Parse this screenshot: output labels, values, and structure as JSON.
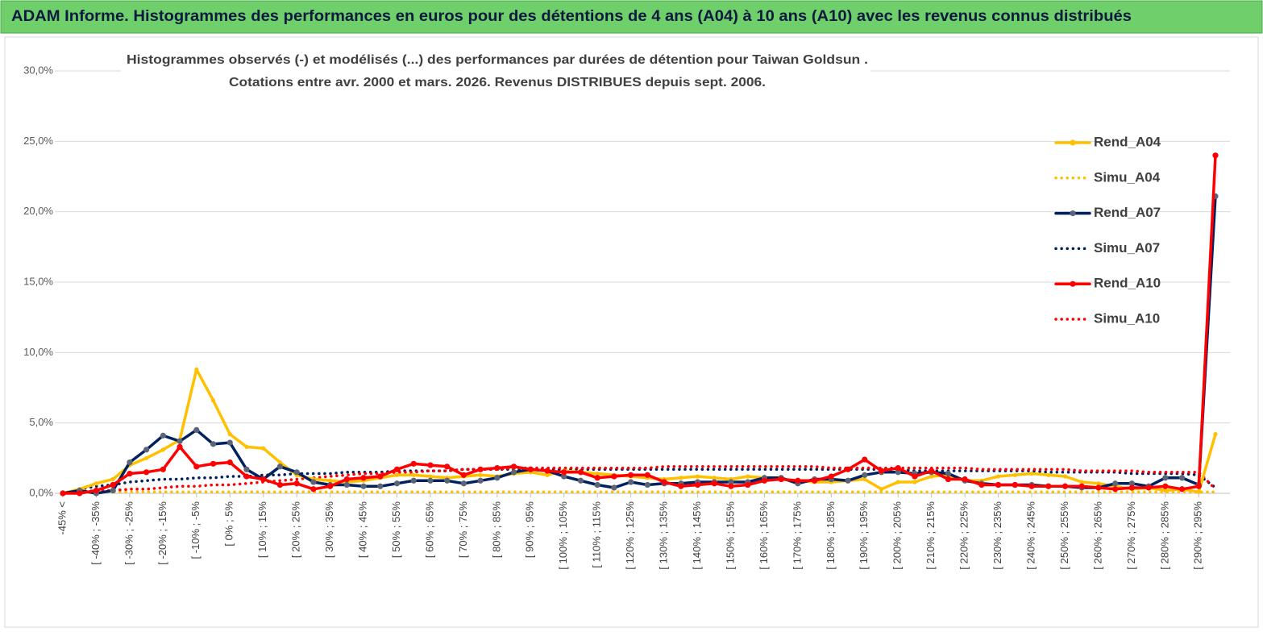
{
  "chart_data": {
    "type": "line",
    "title": "ADAM Informe. Histogrammes des performances en euros pour des détentions de 4 ans (A04) à 10 ans (A10) avec les revenus connus distribués",
    "subtitle": [
      "Histogrammes observés (-) et modélisés (...) des performances par durées de détention pour Taiwan Goldsun .",
      "Cotations entre avr. 2000 et mars. 2026. Revenus DISTRIBUES depuis sept. 2006."
    ],
    "categories": [
      "-45% <",
      null,
      "[ -40% ; -35%",
      null,
      "[ -30% ; -25%",
      null,
      "[ -20% ; -15%",
      null,
      "[ -10% ; -5%",
      null,
      "[ 0% ; 5%",
      null,
      "[ 10% ; 15%",
      null,
      "[ 20% ; 25%",
      null,
      "[ 30% ; 35%",
      null,
      "[ 40% ; 45%",
      null,
      "[ 50% ; 55%",
      null,
      "[ 60% ; 65%",
      null,
      "[ 70% ; 75%",
      null,
      "[ 80% ; 85%",
      null,
      "[ 90% ; 95%",
      null,
      "[ 100% ; 105%",
      null,
      "[ 110% ; 115%",
      null,
      "[ 120% ; 125%",
      null,
      "[ 130% ; 135%",
      null,
      "[ 140% ; 145%",
      null,
      "[ 150% ; 155%",
      null,
      "[ 160% ; 165%",
      null,
      "[ 170% ; 175%",
      null,
      "[ 180% ; 185%",
      null,
      "[ 190% ; 195%",
      null,
      "[ 200% ; 205%",
      null,
      "[ 210% ; 215%",
      null,
      "[ 220% ; 225%",
      null,
      "[ 230% ; 235%",
      null,
      "[ 240% ; 245%",
      null,
      "[ 250% ; 255%",
      null,
      "[ 260% ; 265%",
      null,
      "[ 270% ; 275%",
      null,
      "[ 280% ; 285%",
      null,
      "[ 290% ; 295%",
      null
    ],
    "series": [
      {
        "name": "Rend_A04",
        "color": "#FFC000",
        "style": "solid",
        "markers": true,
        "values": [
          0,
          0.3,
          0.7,
          1.0,
          2.0,
          2.5,
          3.1,
          3.8,
          8.8,
          6.6,
          4.2,
          3.3,
          3.2,
          2.2,
          1.3,
          1.0,
          0.9,
          0.8,
          0.9,
          1.1,
          1.3,
          1.3,
          1.2,
          1.1,
          1.2,
          1.3,
          1.2,
          1.4,
          1.5,
          1.3,
          1.6,
          1.5,
          1.4,
          1.3,
          1.2,
          1.1,
          1.0,
          1.1,
          1.2,
          1.1,
          1.0,
          1.2,
          1.1,
          1.0,
          0.9,
          0.8,
          0.8,
          0.9,
          1.0,
          0.3,
          0.8,
          0.8,
          1.2,
          1.3,
          0.9,
          0.9,
          1.2,
          1.3,
          1.4,
          1.3,
          1.2,
          0.8,
          0.7,
          0.5,
          0.3,
          0.4,
          0.2,
          0.3,
          0.1,
          4.2
        ]
      },
      {
        "name": "Simu_A04",
        "color": "#FFC000",
        "style": "dotted",
        "markers": false,
        "values": [
          0,
          0.1,
          0.1,
          0.1,
          0.1,
          0.1,
          0.1,
          0.1,
          0.1,
          0.1,
          0.1,
          0.1,
          0.1,
          0.1,
          0.1,
          0.1,
          0.1,
          0.1,
          0.1,
          0.1,
          0.1,
          0.1,
          0.1,
          0.1,
          0.1,
          0.1,
          0.1,
          0.1,
          0.1,
          0.1,
          0.1,
          0.1,
          0.1,
          0.1,
          0.1,
          0.1,
          0.1,
          0.1,
          0.1,
          0.1,
          0.1,
          0.1,
          0.1,
          0.1,
          0.1,
          0.1,
          0.1,
          0.1,
          0.1,
          0.1,
          0.1,
          0.1,
          0.1,
          0.1,
          0.1,
          0.1,
          0.1,
          0.1,
          0.1,
          0.1,
          0.1,
          0.1,
          0.1,
          0.1,
          0.1,
          0.1,
          0.1,
          0.1,
          0.1,
          0.1
        ]
      },
      {
        "name": "Rend_A07",
        "color": "#002060",
        "style": "solid",
        "markers": true,
        "values": [
          0,
          0.2,
          0,
          0.2,
          2.2,
          3.1,
          4.1,
          3.7,
          4.5,
          3.5,
          3.6,
          1.7,
          1.0,
          1.9,
          1.5,
          0.8,
          0.6,
          0.6,
          0.5,
          0.5,
          0.7,
          0.9,
          0.9,
          0.9,
          0.7,
          0.9,
          1.1,
          1.5,
          1.7,
          1.6,
          1.2,
          0.9,
          0.6,
          0.4,
          0.8,
          0.6,
          0.7,
          0.7,
          0.8,
          0.8,
          0.8,
          0.8,
          1.1,
          1.1,
          0.7,
          1.0,
          1.0,
          0.9,
          1.3,
          1.5,
          1.5,
          1.4,
          1.5,
          1.4,
          0.9,
          0.7,
          0.6,
          0.6,
          0.6,
          0.5,
          0.5,
          0.4,
          0.4,
          0.7,
          0.7,
          0.5,
          1.1,
          1.1,
          0.6,
          21.1
        ]
      },
      {
        "name": "Simu_A07",
        "color": "#002060",
        "style": "dotted",
        "markers": false,
        "values": [
          0,
          0.3,
          0.5,
          0.6,
          0.8,
          0.9,
          1.0,
          1.0,
          1.1,
          1.1,
          1.2,
          1.2,
          1.3,
          1.3,
          1.4,
          1.4,
          1.4,
          1.5,
          1.5,
          1.5,
          1.6,
          1.6,
          1.6,
          1.6,
          1.7,
          1.7,
          1.7,
          1.7,
          1.7,
          1.7,
          1.7,
          1.7,
          1.7,
          1.7,
          1.7,
          1.7,
          1.7,
          1.7,
          1.7,
          1.7,
          1.7,
          1.7,
          1.7,
          1.7,
          1.7,
          1.7,
          1.7,
          1.7,
          1.7,
          1.7,
          1.7,
          1.6,
          1.6,
          1.6,
          1.6,
          1.6,
          1.6,
          1.6,
          1.6,
          1.5,
          1.5,
          1.5,
          1.5,
          1.5,
          1.4,
          1.4,
          1.4,
          1.4,
          1.3,
          0.4
        ]
      },
      {
        "name": "Rend_A10",
        "color": "#FF0000",
        "style": "solid",
        "markers": true,
        "values": [
          0,
          0,
          0.2,
          0.6,
          1.4,
          1.5,
          1.7,
          3.3,
          1.9,
          2.1,
          2.2,
          1.2,
          1.0,
          0.6,
          0.7,
          0.3,
          0.5,
          1.0,
          1.1,
          1.2,
          1.7,
          2.1,
          2.0,
          1.9,
          1.3,
          1.7,
          1.8,
          1.9,
          1.7,
          1.6,
          1.5,
          1.5,
          1.1,
          1.2,
          1.3,
          1.3,
          0.8,
          0.5,
          0.6,
          0.7,
          0.5,
          0.6,
          0.9,
          1.0,
          0.9,
          0.9,
          1.2,
          1.7,
          2.4,
          1.6,
          1.8,
          1.2,
          1.6,
          1.0,
          1.0,
          0.6,
          0.6,
          0.6,
          0.5,
          0.5,
          0.5,
          0.5,
          0.4,
          0.3,
          0.4,
          0.4,
          0.5,
          0.3,
          0.5,
          24.0
        ]
      },
      {
        "name": "Simu_A10",
        "color": "#FF0000",
        "style": "dotted",
        "markers": false,
        "values": [
          0,
          0.1,
          0.2,
          0.2,
          0.3,
          0.3,
          0.4,
          0.5,
          0.5,
          0.6,
          0.6,
          0.7,
          0.8,
          0.9,
          1.0,
          1.1,
          1.2,
          1.3,
          1.4,
          1.4,
          1.5,
          1.5,
          1.6,
          1.6,
          1.7,
          1.7,
          1.7,
          1.8,
          1.8,
          1.8,
          1.8,
          1.8,
          1.8,
          1.8,
          1.8,
          1.8,
          1.9,
          1.9,
          1.9,
          1.9,
          1.9,
          1.9,
          1.9,
          1.9,
          1.9,
          1.9,
          1.8,
          1.8,
          1.8,
          1.8,
          1.8,
          1.8,
          1.8,
          1.8,
          1.8,
          1.7,
          1.7,
          1.7,
          1.7,
          1.7,
          1.7,
          1.6,
          1.6,
          1.6,
          1.6,
          1.5,
          1.5,
          1.5,
          1.5,
          0.3
        ]
      }
    ],
    "ylim": [
      0,
      30
    ],
    "yticks": [
      {
        "value": 0,
        "label": "0,0%"
      },
      {
        "value": 5,
        "label": "5,0%"
      },
      {
        "value": 10,
        "label": "10,0%"
      },
      {
        "value": 15,
        "label": "15,0%"
      },
      {
        "value": 20,
        "label": "20,0%"
      },
      {
        "value": 25,
        "label": "25,0%"
      },
      {
        "value": 30,
        "label": "30,0%"
      }
    ],
    "grid": true,
    "legend": "right"
  }
}
